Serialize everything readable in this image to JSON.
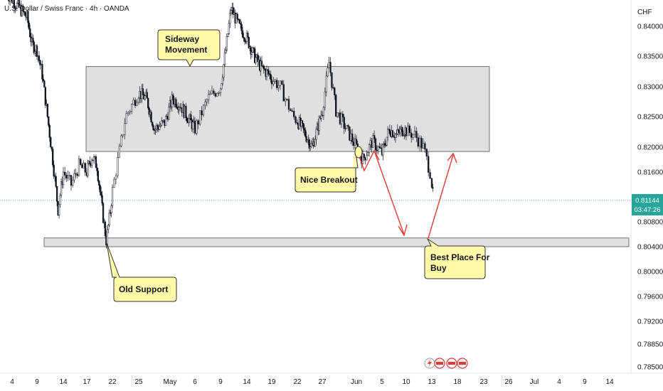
{
  "header": {
    "symbol_title": "U.S. Dollar / Swiss Franc · 4h · OANDA",
    "currency": "CHF"
  },
  "price_badge": {
    "price": "0.81144",
    "countdown": "03:47:26",
    "color": "#26a69a"
  },
  "colors": {
    "up": "#131722",
    "down": "#131722",
    "zone_fill": "#e0e0e0",
    "zone_stroke": "#555555",
    "arrow": "#e53935",
    "callout_fill": "#fff9a8",
    "callout_stroke": "#333333"
  },
  "annotations": {
    "sideway": [
      "Sideway",
      "Movement"
    ],
    "nice_breakout": "Nice Breakout",
    "old_support": "Old Support",
    "best_place": [
      "Best Place For",
      "Buy"
    ]
  },
  "footer_icons": [
    "lightning-icon",
    "economic-event-icon",
    "economic-event-icon",
    "economic-event-icon"
  ],
  "chart_data": {
    "type": "candlestick",
    "title": "U.S. Dollar / Swiss Franc · 4h · OANDA",
    "ylim": [
      0.7845,
      0.844
    ],
    "y_ticks": [
      {
        "value": 0.84,
        "label": "0.84000"
      },
      {
        "value": 0.835,
        "label": "0.83500"
      },
      {
        "value": 0.83,
        "label": "0.83000"
      },
      {
        "value": 0.825,
        "label": "0.82500"
      },
      {
        "value": 0.82,
        "label": "0.82000"
      },
      {
        "value": 0.816,
        "label": "0.81600"
      },
      {
        "value": 0.808,
        "label": "0.80800"
      },
      {
        "value": 0.804,
        "label": "0.80400"
      },
      {
        "value": 0.8,
        "label": "0.80000"
      },
      {
        "value": 0.796,
        "label": "0.79600"
      },
      {
        "value": 0.792,
        "label": "0.79200"
      },
      {
        "value": 0.7885,
        "label": "0.78850"
      },
      {
        "value": 0.785,
        "label": "0.78500"
      }
    ],
    "x_ticks": [
      {
        "label": "4",
        "day": 4
      },
      {
        "label": "9",
        "day": 9
      },
      {
        "label": "14",
        "day": 14
      },
      {
        "label": "17",
        "day": 17
      },
      {
        "label": "22",
        "day": 22
      },
      {
        "label": "25",
        "day": 25
      },
      {
        "label": "May",
        "day": 31
      },
      {
        "label": "6",
        "day": 36
      },
      {
        "label": "9",
        "day": 39
      },
      {
        "label": "14",
        "day": 44
      },
      {
        "label": "19",
        "day": 49
      },
      {
        "label": "22",
        "day": 52
      },
      {
        "label": "27",
        "day": 57
      },
      {
        "label": "Jun",
        "day": 62
      },
      {
        "label": "5",
        "day": 66
      },
      {
        "label": "10",
        "day": 71
      },
      {
        "label": "13",
        "day": 74
      },
      {
        "label": "18",
        "day": 79
      },
      {
        "label": "23",
        "day": 84
      },
      {
        "label": "26",
        "day": 87
      },
      {
        "label": "Jul",
        "day": 92
      },
      {
        "label": "4",
        "day": 95
      },
      {
        "label": "9",
        "day": 100
      },
      {
        "label": "14",
        "day": 105
      }
    ],
    "current_price": 0.81144,
    "zones": [
      {
        "name": "sideway-range",
        "from_day": 17.5,
        "to_day": 79.5,
        "low": 0.8193,
        "high": 0.8333
      },
      {
        "name": "old-support",
        "from_day": 5,
        "to_day": 110,
        "low": 0.804,
        "high": 0.8054
      }
    ],
    "series": [
      {
        "waypoints": [
          [
            3,
            0.8455
          ],
          [
            7,
            0.8415
          ],
          [
            8,
            0.837
          ],
          [
            9,
            0.836
          ],
          [
            10,
            0.832
          ],
          [
            11,
            0.825
          ],
          [
            12,
            0.818
          ],
          [
            13,
            0.81
          ],
          [
            14,
            0.816
          ],
          [
            15,
            0.814
          ],
          [
            16,
            0.817
          ],
          [
            17,
            0.816
          ],
          [
            18,
            0.8185
          ],
          [
            19,
            0.817
          ],
          [
            20,
            0.81
          ],
          [
            20.8,
            0.805
          ],
          [
            21.5,
            0.809
          ],
          [
            22.5,
            0.817
          ],
          [
            23.5,
            0.825
          ],
          [
            25,
            0.829
          ],
          [
            26.5,
            0.828
          ],
          [
            28,
            0.823
          ],
          [
            30,
            0.824
          ],
          [
            31.5,
            0.828
          ],
          [
            33,
            0.827
          ],
          [
            34.5,
            0.825
          ],
          [
            36,
            0.823
          ],
          [
            37.5,
            0.828
          ],
          [
            39,
            0.83
          ],
          [
            40,
            0.836
          ],
          [
            41,
            0.843
          ],
          [
            42.5,
            0.84
          ],
          [
            44,
            0.838
          ],
          [
            45.5,
            0.835
          ],
          [
            47,
            0.833
          ],
          [
            48.5,
            0.832
          ],
          [
            50,
            0.83
          ],
          [
            51.5,
            0.825
          ],
          [
            53,
            0.823
          ],
          [
            55,
            0.82
          ],
          [
            57,
            0.826
          ],
          [
            58,
            0.834
          ],
          [
            59,
            0.826
          ],
          [
            60.5,
            0.823
          ],
          [
            62,
            0.82
          ],
          [
            63,
            0.818
          ],
          [
            64.5,
            0.821
          ],
          [
            66,
            0.819
          ],
          [
            67.5,
            0.823
          ],
          [
            69,
            0.822
          ],
          [
            70.5,
            0.823
          ],
          [
            72,
            0.822
          ],
          [
            73,
            0.82
          ],
          [
            73.8,
            0.816
          ],
          [
            74.3,
            0.8114
          ]
        ]
      }
    ]
  }
}
